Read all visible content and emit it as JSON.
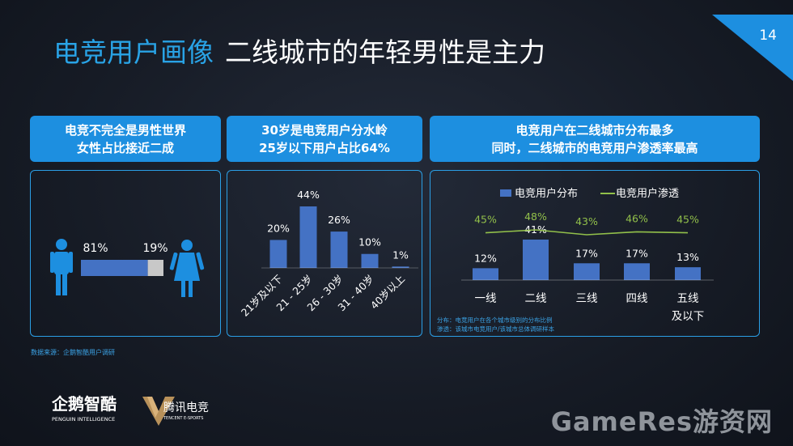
{
  "page": {
    "title_highlight": "电竞用户画像",
    "title_rest": "二线城市的年轻男性是主力",
    "page_number": "14",
    "source": "数据来源：企鹅智酷用户调研",
    "watermark": "GameRes游资网",
    "logo1_main": "企鹅智酷",
    "logo1_sub": "PENGUIN INTELLIGENCE",
    "logo2_main": "腾讯电竞",
    "logo2_sub": "TENCENT E-SPORTS",
    "colors": {
      "accent": "#1d8fe0",
      "bar": "#4472c4",
      "line": "#92c04a",
      "female": "#c8c8c8"
    }
  },
  "panels": [
    {
      "header_line1": "电竞不完全是男性世界",
      "header_line2": "女性占比接近二成"
    },
    {
      "header_line1": "30岁是电竞用户分水岭",
      "header_line2": "25岁以下用户占比64%"
    },
    {
      "header_line1": "电竞用户在二线城市分布最多",
      "header_line2": "同时，二线城市的电竞用户渗透率最高"
    }
  ],
  "chart_data": [
    {
      "type": "bar",
      "orientation": "horizontal-stacked",
      "categories": [
        "男性",
        "女性"
      ],
      "values": [
        81,
        19
      ],
      "labels": [
        "81%",
        "19%"
      ]
    },
    {
      "type": "bar",
      "categories": [
        "21岁及以下",
        "21 - 25岁",
        "26 - 30岁",
        "31 - 40岁",
        "40岁以上"
      ],
      "values": [
        20,
        44,
        26,
        10,
        1
      ],
      "labels": [
        "20%",
        "44%",
        "26%",
        "10%",
        "1%"
      ]
    },
    {
      "type": "bar+line",
      "categories": [
        "一线",
        "二线",
        "三线",
        "四线",
        "五线及以下"
      ],
      "category_labels": [
        [
          "一线"
        ],
        [
          "二线"
        ],
        [
          "三线"
        ],
        [
          "四线"
        ],
        [
          "五线",
          "及以下"
        ]
      ],
      "series": [
        {
          "name": "电竞用户分布",
          "type": "bar",
          "values": [
            12,
            41,
            17,
            17,
            13
          ],
          "labels": [
            "12%",
            "41%",
            "17%",
            "17%",
            "13%"
          ]
        },
        {
          "name": "电竞用户渗透",
          "type": "line",
          "values": [
            45,
            48,
            43,
            46,
            45
          ],
          "labels": [
            "45%",
            "48%",
            "43%",
            "46%",
            "45%"
          ]
        }
      ],
      "legend": "top",
      "notes": [
        "分布：电竞用户在各个城市级别的分布比例",
        "渗透：该城市电竞用户/该城市总体调研样本"
      ]
    }
  ]
}
